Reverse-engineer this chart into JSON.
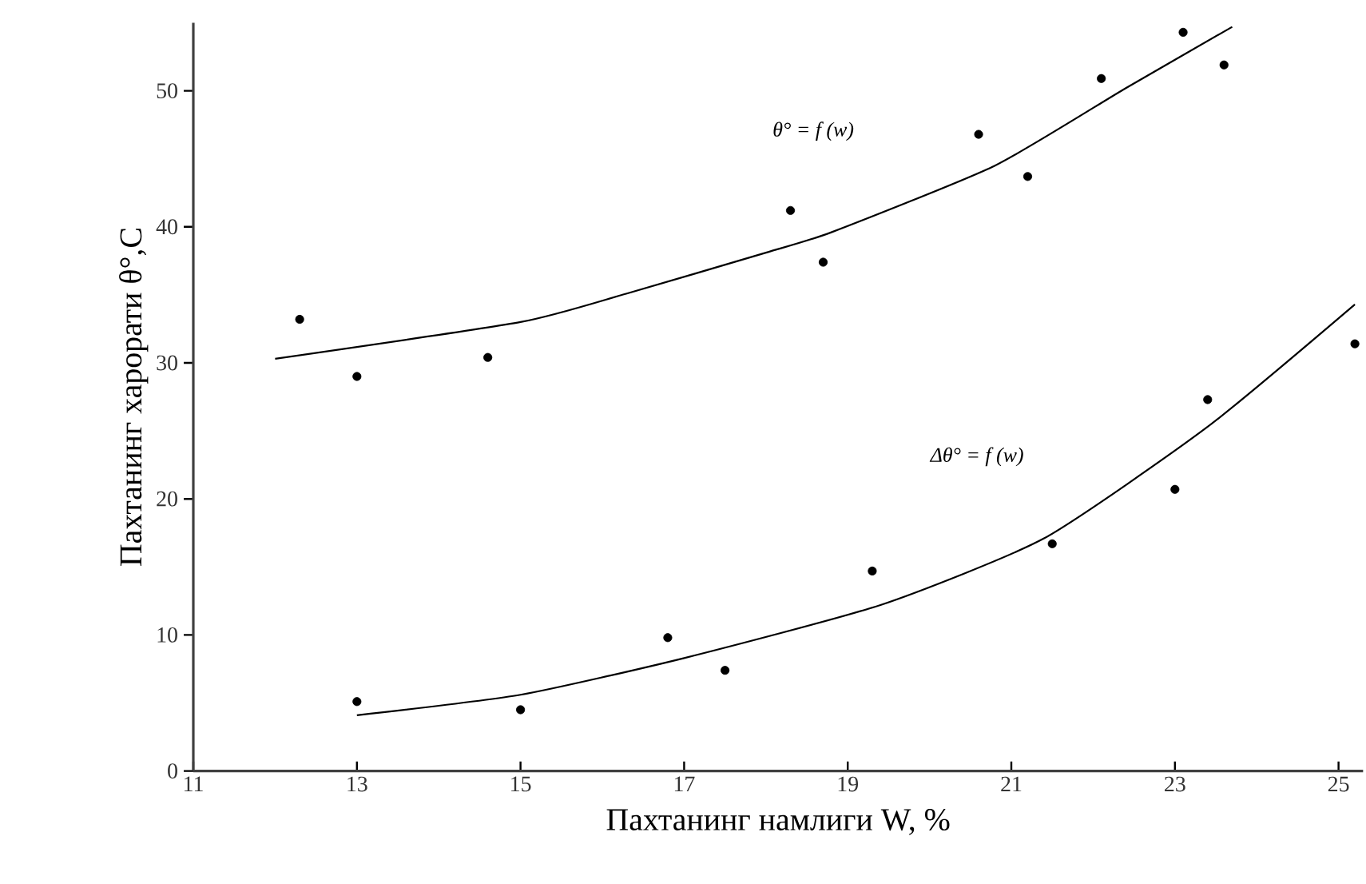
{
  "chart_data": {
    "type": "scatter",
    "xlabel": "Пахтанинг намлиги W, %",
    "ylabel": "Пахтанинг харорати θ°,C",
    "annotations": [
      "θ° = f (w)",
      "Δθ° = f (w)"
    ],
    "series": [
      {
        "color": "#000000",
        "x": [
          12.3,
          13.0,
          14.6,
          18.3,
          18.7,
          20.6,
          21.2,
          22.1,
          23.1,
          23.6
        ],
        "values": [
          33.2,
          29.0,
          30.4,
          41.2,
          37.4,
          46.8,
          43.7,
          50.9,
          54.3,
          51.9
        ]
      },
      {
        "color": "#000000",
        "x": [
          13.0,
          15.0,
          16.8,
          17.5,
          19.3,
          21.5,
          23.0,
          23.4,
          25.2
        ],
        "values": [
          5.1,
          4.5,
          9.8,
          7.4,
          14.7,
          16.7,
          20.7,
          27.3,
          31.4
        ]
      },
      {
        "type": "line",
        "marker": "none",
        "color": "#000000",
        "x": [
          12.0,
          15.0,
          16.3,
          18.0,
          18.8,
          20.8,
          22.4,
          23.7
        ],
        "values": [
          30.3,
          33.0,
          35.1,
          38.1,
          39.6,
          44.5,
          50.2,
          54.7
        ]
      },
      {
        "type": "line",
        "marker": "none",
        "color": "#000000",
        "x": [
          13.0,
          15.0,
          17.0,
          19.4,
          21.4,
          23.4,
          25.2
        ],
        "values": [
          4.1,
          5.6,
          8.3,
          12.2,
          17.1,
          25.3,
          34.3
        ]
      }
    ],
    "xlim": [
      11,
      25.3
    ],
    "ylim": [
      0,
      55
    ],
    "xticks": [
      11,
      13,
      15,
      17,
      19,
      21,
      23,
      25
    ],
    "yticks": [
      0,
      10,
      20,
      30,
      40,
      50
    ],
    "marker": "circle",
    "grid": false
  }
}
